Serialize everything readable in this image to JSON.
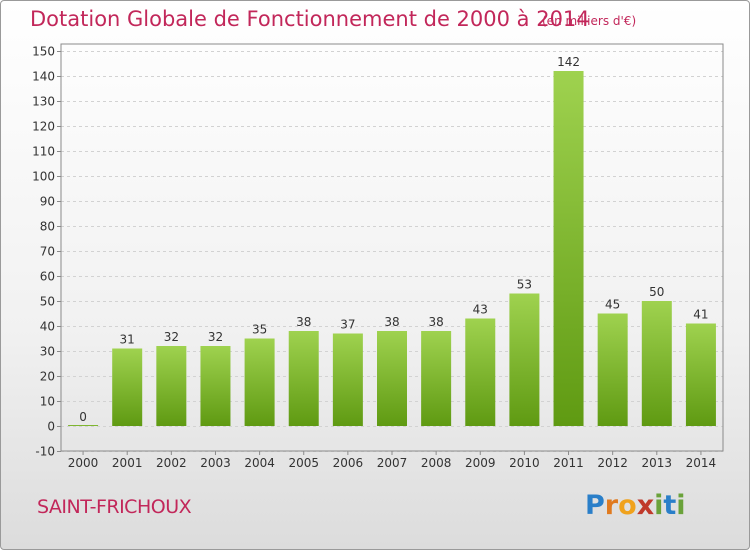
{
  "chart_data": {
    "type": "bar",
    "title": "Dotation Globale de Fonctionnement de 2000 à 2014",
    "subtitle": "(en milliers d'€)",
    "categories": [
      "2000",
      "2001",
      "2002",
      "2003",
      "2004",
      "2005",
      "2006",
      "2007",
      "2008",
      "2009",
      "2010",
      "2011",
      "2012",
      "2013",
      "2014"
    ],
    "values": [
      0,
      31,
      32,
      32,
      35,
      38,
      37,
      38,
      38,
      43,
      53,
      142,
      45,
      50,
      41
    ],
    "ylim": [
      -10,
      150
    ],
    "yticks": [
      -10,
      0,
      10,
      20,
      30,
      40,
      50,
      60,
      70,
      80,
      90,
      100,
      110,
      120,
      130,
      140,
      150
    ],
    "grid": true,
    "colors": {
      "bar_top": "#9fd24f",
      "bar_bottom": "#5f9a12",
      "title": "#c2275a"
    }
  },
  "footer": {
    "town": "SAINT-FRICHOUX",
    "logo": "Proxiti"
  }
}
